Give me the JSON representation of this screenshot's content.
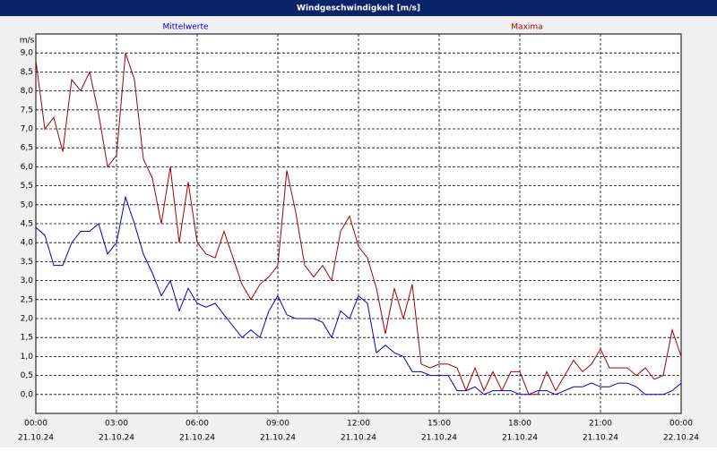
{
  "chart_data": {
    "type": "line",
    "title": "Windgeschwindigkeit [m/s]",
    "y_label": "m/s",
    "x": [
      0,
      20,
      40,
      60,
      80,
      100,
      120,
      140,
      160,
      180,
      200,
      220,
      240,
      260,
      280,
      300,
      320,
      340,
      360,
      380,
      400,
      420,
      440,
      460,
      480,
      500,
      520,
      540,
      560,
      580,
      600,
      620,
      640,
      660,
      680,
      700,
      720,
      740,
      760,
      780,
      800,
      820,
      840,
      860,
      880,
      900,
      920,
      940,
      960,
      980,
      1000,
      1020,
      1040,
      1060,
      1080,
      1100,
      1120,
      1140,
      1160,
      1180,
      1200,
      1220,
      1240,
      1260,
      1280,
      1300,
      1320,
      1340,
      1360,
      1380,
      1400,
      1420,
      1440
    ],
    "series": [
      {
        "name": "Mittelwerte",
        "color": "#0000c0",
        "values": [
          4.4,
          4.2,
          3.4,
          3.4,
          4.0,
          4.3,
          4.3,
          4.5,
          3.7,
          4.0,
          5.2,
          4.5,
          3.7,
          3.2,
          2.6,
          3.0,
          2.2,
          2.8,
          2.4,
          2.3,
          2.4,
          2.1,
          1.8,
          1.5,
          1.7,
          1.5,
          2.2,
          2.6,
          2.1,
          2.0,
          2.0,
          2.0,
          1.9,
          1.5,
          2.2,
          2.0,
          2.6,
          2.4,
          1.1,
          1.3,
          1.1,
          1.0,
          0.6,
          0.6,
          0.5,
          0.5,
          0.5,
          0.1,
          0.1,
          0.2,
          0.0,
          0.1,
          0.1,
          0.1,
          0.0,
          0.0,
          0.1,
          0.1,
          0.0,
          0.1,
          0.2,
          0.2,
          0.3,
          0.2,
          0.2,
          0.3,
          0.3,
          0.2,
          0.0,
          0.0,
          0.0,
          0.1,
          0.3
        ]
      },
      {
        "name": "Maxima",
        "color": "#a00000",
        "values": [
          8.8,
          7.0,
          7.3,
          6.4,
          8.3,
          8.0,
          8.5,
          7.4,
          6.0,
          6.3,
          9.0,
          8.3,
          6.2,
          5.7,
          4.5,
          6.0,
          4.0,
          5.6,
          4.0,
          3.7,
          3.6,
          4.3,
          3.6,
          2.9,
          2.5,
          2.9,
          3.1,
          3.4,
          5.9,
          4.8,
          3.4,
          3.1,
          3.4,
          3.0,
          4.3,
          4.7,
          3.9,
          3.6,
          2.8,
          1.6,
          2.8,
          2.0,
          2.9,
          0.8,
          0.7,
          0.8,
          0.8,
          0.7,
          0.1,
          0.7,
          0.1,
          0.6,
          0.1,
          0.6,
          0.6,
          0.0,
          0.0,
          0.6,
          0.1,
          0.5,
          0.9,
          0.6,
          0.8,
          1.2,
          0.7,
          0.7,
          0.7,
          0.5,
          0.7,
          0.4,
          0.5,
          1.7,
          1.0
        ]
      }
    ],
    "xlim": [
      0,
      1440
    ],
    "xticks": [
      {
        "value": 0,
        "label": "00:00",
        "date": "21.10.24"
      },
      {
        "value": 180,
        "label": "03:00",
        "date": "21.10.24"
      },
      {
        "value": 360,
        "label": "06:00",
        "date": "21.10.24"
      },
      {
        "value": 540,
        "label": "09:00",
        "date": "21.10.24"
      },
      {
        "value": 720,
        "label": "12:00",
        "date": "21.10.24"
      },
      {
        "value": 900,
        "label": "15:00",
        "date": "21.10.24"
      },
      {
        "value": 1080,
        "label": "18:00",
        "date": "21.10.24"
      },
      {
        "value": 1260,
        "label": "21:00",
        "date": "21.10.24"
      },
      {
        "value": 1440,
        "label": "00:00",
        "date": "22.10.24"
      }
    ],
    "ylim": [
      -0.5,
      9.5
    ],
    "yticks": [
      {
        "value": 0,
        "label": "0,0"
      },
      {
        "value": 0.5,
        "label": "0,5"
      },
      {
        "value": 1,
        "label": "1,0"
      },
      {
        "value": 1.5,
        "label": "1,5"
      },
      {
        "value": 2,
        "label": "2,0"
      },
      {
        "value": 2.5,
        "label": "2,5"
      },
      {
        "value": 3,
        "label": "3,0"
      },
      {
        "value": 3.5,
        "label": "3,5"
      },
      {
        "value": 4,
        "label": "4,0"
      },
      {
        "value": 4.5,
        "label": "4,5"
      },
      {
        "value": 5,
        "label": "5,0"
      },
      {
        "value": 5.5,
        "label": "5,5"
      },
      {
        "value": 6,
        "label": "6,0"
      },
      {
        "value": 6.5,
        "label": "6,5"
      },
      {
        "value": 7,
        "label": "7,0"
      },
      {
        "value": 7.5,
        "label": "7,5"
      },
      {
        "value": 8,
        "label": "8,0"
      },
      {
        "value": 8.5,
        "label": "8,5"
      },
      {
        "value": 9,
        "label": "9,0"
      }
    ],
    "grid": true
  }
}
